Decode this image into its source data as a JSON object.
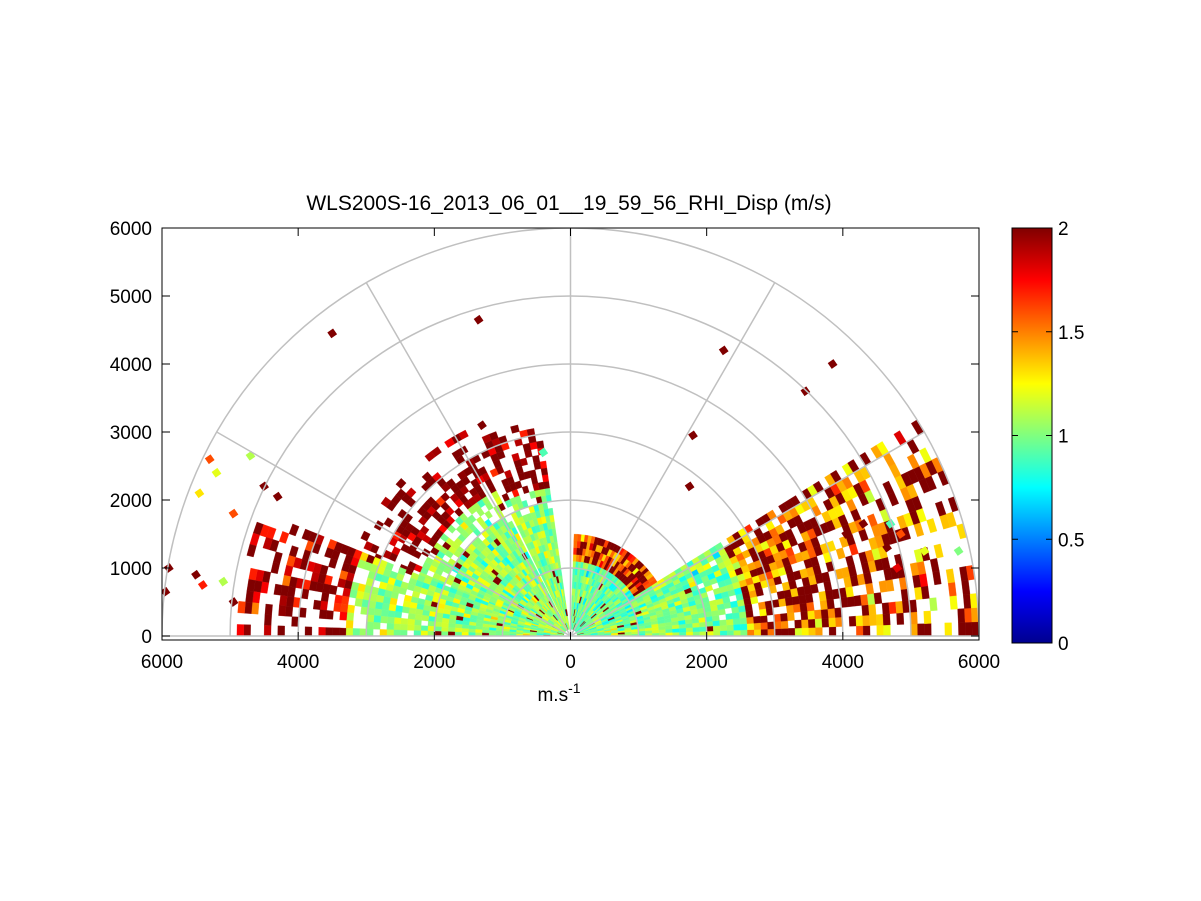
{
  "chart_data": {
    "type": "heatmap",
    "subtype": "polar-rhi-sector",
    "title": "WLS200S-16_2013_06_01__19_59_56_RHI_Disp (m/s)",
    "xlabel": "m.s",
    "xlabel_superscript": "-1",
    "xlim": [
      -6000,
      6000
    ],
    "ylim": [
      0,
      6000
    ],
    "x_ticks": [
      -6000,
      -4000,
      -2000,
      0,
      2000,
      4000,
      6000
    ],
    "x_tick_labels": [
      "6000",
      "4000",
      "2000",
      "0",
      "2000",
      "4000",
      "6000"
    ],
    "y_ticks": [
      0,
      1000,
      2000,
      3000,
      4000,
      5000,
      6000
    ],
    "y_tick_labels": [
      "0",
      "1000",
      "2000",
      "3000",
      "4000",
      "5000",
      "6000"
    ],
    "polar_grid_ranges": [
      1000,
      2000,
      3000,
      4000,
      5000,
      6000
    ],
    "polar_grid_angles_deg": [
      0,
      30,
      60,
      90,
      120,
      150,
      180
    ],
    "colorbar": {
      "colormap": "jet",
      "range": [
        0,
        2
      ],
      "ticks": [
        0,
        0.5,
        1,
        1.5,
        2
      ],
      "tick_labels": [
        "0",
        "0.5",
        "1",
        "1.5",
        "2"
      ]
    },
    "sectors": [
      {
        "az_start": 0,
        "az_end": 32,
        "max_range": 6000,
        "base_value": 1.0,
        "outer_value": 1.4,
        "outer_from": 2600
      },
      {
        "az_start": 32,
        "az_end": 88,
        "max_range": 1450,
        "base_value": 0.95,
        "outer_value": 1.5,
        "outer_from": 1100
      },
      {
        "az_start": 98,
        "az_end": 115,
        "max_range": 3200,
        "base_value": 1.05,
        "outer_value": 1.9,
        "outer_from": 2200
      },
      {
        "az_start": 117,
        "az_end": 158,
        "max_range": 3400,
        "base_value": 1.05,
        "outer_value": 1.95,
        "outer_from": 2400
      },
      {
        "az_start": 158,
        "az_end": 180,
        "max_range": 4900,
        "base_value": 1.05,
        "outer_value": 1.8,
        "outer_from": 3300
      }
    ],
    "isolated_returns": [
      {
        "x": -3500,
        "y": 4450,
        "value": 2.0
      },
      {
        "x": -1350,
        "y": 4650,
        "value": 2.0
      },
      {
        "x": 2250,
        "y": 4200,
        "value": 2.0
      },
      {
        "x": 3850,
        "y": 4000,
        "value": 2.0
      },
      {
        "x": 3450,
        "y": 3600,
        "value": 2.0
      },
      {
        "x": 1800,
        "y": 2950,
        "value": 2.0
      },
      {
        "x": 1750,
        "y": 2200,
        "value": 2.0
      },
      {
        "x": -5300,
        "y": 2600,
        "value": 1.6
      },
      {
        "x": -5200,
        "y": 2400,
        "value": 1.2
      },
      {
        "x": -4700,
        "y": 2650,
        "value": 1.1
      },
      {
        "x": -4500,
        "y": 2200,
        "value": 2.0
      },
      {
        "x": -4300,
        "y": 2050,
        "value": 2.0
      },
      {
        "x": -5450,
        "y": 2100,
        "value": 1.3
      },
      {
        "x": -4950,
        "y": 1800,
        "value": 1.6
      },
      {
        "x": -5900,
        "y": 1000,
        "value": 2.0
      },
      {
        "x": -5500,
        "y": 900,
        "value": 2.0
      },
      {
        "x": -5400,
        "y": 750,
        "value": 1.7
      },
      {
        "x": -5950,
        "y": 650,
        "value": 2.0
      },
      {
        "x": -5100,
        "y": 800,
        "value": 1.1
      },
      {
        "x": -4950,
        "y": 500,
        "value": 2.0
      },
      {
        "x": -1300,
        "y": 3100,
        "value": 2.0
      },
      {
        "x": -400,
        "y": 2700,
        "value": 0.9
      },
      {
        "x": 4050,
        "y": 1500,
        "value": 2.0
      },
      {
        "x": 4300,
        "y": 1650,
        "value": 2.0
      },
      {
        "x": 4700,
        "y": 1650,
        "value": 0.9
      },
      {
        "x": 4850,
        "y": 1500,
        "value": 1.6
      },
      {
        "x": 4650,
        "y": 1300,
        "value": 2.0
      },
      {
        "x": 5200,
        "y": 1250,
        "value": 1.2
      },
      {
        "x": 5700,
        "y": 1250,
        "value": 1.0
      },
      {
        "x": 4800,
        "y": 1000,
        "value": 1.8
      }
    ]
  }
}
